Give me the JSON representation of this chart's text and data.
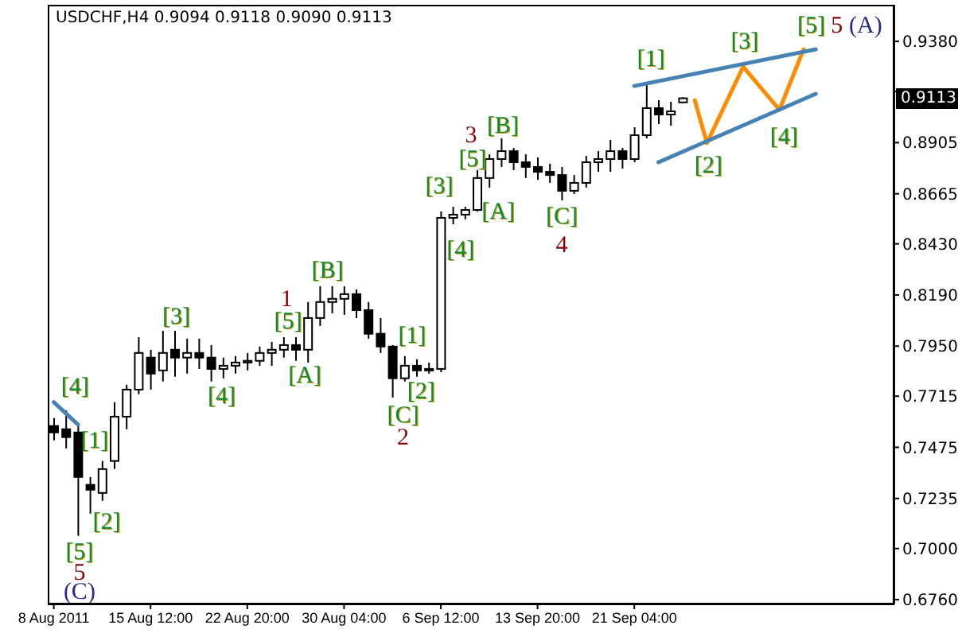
{
  "chart_data": {
    "type": "candlestick",
    "title": "USDCHF,H4  0.9094 0.9118 0.9090 0.9113",
    "color": "#000000",
    "categories": [
      "8 Aug 2011",
      null,
      null,
      null,
      null,
      null,
      null,
      null,
      "15 Aug 12:00",
      null,
      null,
      null,
      null,
      null,
      null,
      null,
      "22 Aug 20:00",
      null,
      null,
      null,
      null,
      null,
      null,
      null,
      "30 Aug 04:00",
      null,
      null,
      null,
      null,
      null,
      null,
      null,
      "6 Sep 12:00",
      null,
      null,
      null,
      null,
      null,
      null,
      null,
      "13 Sep 20:00",
      null,
      null,
      null,
      null,
      null,
      null,
      null,
      "21 Sep 04:00",
      null,
      null,
      null,
      null,
      null,
      null,
      null,
      null,
      null,
      null,
      null,
      null,
      null,
      null,
      null,
      null,
      null,
      null,
      null,
      null,
      null
    ],
    "ohlc": [
      [
        0.7575,
        0.7612,
        0.7508,
        0.7545
      ],
      [
        0.756,
        0.7649,
        0.747,
        0.7523
      ],
      [
        0.7545,
        0.7575,
        0.706,
        0.7336
      ],
      [
        0.7299,
        0.7336,
        0.7164,
        0.7276
      ],
      [
        0.7261,
        0.7411,
        0.7224,
        0.7373
      ],
      [
        0.7411,
        0.7687,
        0.7373,
        0.7619
      ],
      [
        0.7619,
        0.7769,
        0.756,
        0.7746
      ],
      [
        0.7746,
        0.7992,
        0.7724,
        0.7918
      ],
      [
        0.7896,
        0.7933,
        0.7746,
        0.7821
      ],
      [
        0.7836,
        0.8022,
        0.7784,
        0.7918
      ],
      [
        0.7933,
        0.8022,
        0.7806,
        0.7896
      ],
      [
        0.7896,
        0.7985,
        0.7821,
        0.7918
      ],
      [
        0.7918,
        0.7985,
        0.7843,
        0.7896
      ],
      [
        0.7896,
        0.7955,
        0.7784,
        0.7843
      ],
      [
        0.7843,
        0.7896,
        0.7799,
        0.7858
      ],
      [
        0.7858,
        0.7903,
        0.7821,
        0.7873
      ],
      [
        0.7873,
        0.7918,
        0.7836,
        0.7881
      ],
      [
        0.7881,
        0.7948,
        0.7858,
        0.7918
      ],
      [
        0.7918,
        0.797,
        0.7858,
        0.7933
      ],
      [
        0.7933,
        0.7992,
        0.7896,
        0.7955
      ],
      [
        0.7955,
        0.7992,
        0.7881,
        0.7933
      ],
      [
        0.7933,
        0.8157,
        0.7873,
        0.8082
      ],
      [
        0.8082,
        0.8231,
        0.8045,
        0.8157
      ],
      [
        0.8157,
        0.8231,
        0.8104,
        0.8172
      ],
      [
        0.8172,
        0.8231,
        0.8097,
        0.8194
      ],
      [
        0.8194,
        0.8216,
        0.8082,
        0.8119
      ],
      [
        0.8119,
        0.8157,
        0.7985,
        0.8008
      ],
      [
        0.8008,
        0.8082,
        0.7918,
        0.7948
      ],
      [
        0.7948,
        0.7955,
        0.7709,
        0.7799
      ],
      [
        0.7799,
        0.7903,
        0.7784,
        0.7858
      ],
      [
        0.7858,
        0.7888,
        0.7806,
        0.7836
      ],
      [
        0.7836,
        0.7873,
        0.7821,
        0.7843
      ],
      [
        0.7843,
        0.8582,
        0.7828,
        0.8552
      ],
      [
        0.8552,
        0.8604,
        0.8522,
        0.8567
      ],
      [
        0.8567,
        0.8604,
        0.8545,
        0.8589
      ],
      [
        0.8589,
        0.8776,
        0.8582,
        0.8739
      ],
      [
        0.8739,
        0.885,
        0.8694,
        0.8828
      ],
      [
        0.8828,
        0.8925,
        0.8791,
        0.8865
      ],
      [
        0.8865,
        0.888,
        0.8776,
        0.8813
      ],
      [
        0.8813,
        0.885,
        0.8739,
        0.8791
      ],
      [
        0.8791,
        0.8835,
        0.8731,
        0.8768
      ],
      [
        0.8768,
        0.8806,
        0.8716,
        0.8753
      ],
      [
        0.8753,
        0.8791,
        0.8634,
        0.8679
      ],
      [
        0.8679,
        0.8753,
        0.8664,
        0.8716
      ],
      [
        0.8716,
        0.8843,
        0.8694,
        0.8813
      ],
      [
        0.8813,
        0.8865,
        0.8768,
        0.8828
      ],
      [
        0.8828,
        0.8918,
        0.8768,
        0.8865
      ],
      [
        0.8865,
        0.888,
        0.8783,
        0.8828
      ],
      [
        0.8828,
        0.8977,
        0.8813,
        0.894
      ],
      [
        0.894,
        0.9179,
        0.8925,
        0.9067
      ],
      [
        0.9067,
        0.9104,
        0.8992,
        0.9037
      ],
      [
        0.9037,
        0.9097,
        0.8985,
        0.9052
      ],
      [
        0.9094,
        0.9118,
        0.909,
        0.9113
      ],
      null,
      null,
      null,
      null,
      null,
      null,
      null,
      null,
      null,
      null,
      null,
      null,
      null,
      null,
      null,
      null,
      null
    ],
    "series": [
      {
        "type": "line",
        "color": "#ff8c00",
        "values": [
          null,
          null,
          null,
          null,
          null,
          null,
          null,
          null,
          null,
          null,
          null,
          null,
          null,
          null,
          null,
          null,
          null,
          null,
          null,
          null,
          null,
          null,
          null,
          null,
          null,
          null,
          null,
          null,
          null,
          null,
          null,
          null,
          null,
          null,
          null,
          null,
          null,
          null,
          null,
          null,
          null,
          null,
          null,
          null,
          null,
          null,
          null,
          null,
          null,
          null,
          null,
          null,
          null,
          0.9104,
          0.8903,
          null,
          null,
          0.9261,
          null,
          null,
          0.9059,
          null,
          0.9343,
          null,
          null,
          null,
          null,
          null,
          null,
          null
        ]
      },
      {
        "type": "line",
        "color": "#4682b4",
        "values": [
          null,
          null,
          null,
          null,
          null,
          null,
          null,
          null,
          null,
          null,
          null,
          null,
          null,
          null,
          null,
          null,
          null,
          null,
          null,
          null,
          null,
          null,
          null,
          null,
          null,
          null,
          null,
          null,
          null,
          null,
          null,
          null,
          null,
          null,
          null,
          null,
          null,
          null,
          null,
          null,
          null,
          null,
          null,
          null,
          null,
          null,
          null,
          null,
          0.9171,
          null,
          null,
          null,
          null,
          null,
          null,
          null,
          null,
          null,
          null,
          null,
          null,
          null,
          null,
          0.9343,
          null,
          null,
          null,
          null,
          null,
          null
        ]
      },
      {
        "type": "line",
        "color": "#4682b4",
        "values": [
          null,
          null,
          null,
          null,
          null,
          null,
          null,
          null,
          null,
          null,
          null,
          null,
          null,
          null,
          null,
          null,
          null,
          null,
          null,
          null,
          null,
          null,
          null,
          null,
          null,
          null,
          null,
          null,
          null,
          null,
          null,
          null,
          null,
          null,
          null,
          null,
          null,
          null,
          null,
          null,
          null,
          null,
          null,
          null,
          null,
          null,
          null,
          null,
          null,
          null,
          0.8813,
          null,
          null,
          null,
          null,
          null,
          null,
          null,
          null,
          null,
          null,
          null,
          null,
          0.9134,
          null,
          null,
          null,
          null,
          null,
          null
        ]
      },
      {
        "type": "line",
        "color": "#4682b4",
        "values": [
          0.7687,
          null,
          0.7582,
          null,
          null,
          null,
          null,
          null,
          null,
          null,
          null,
          null,
          null,
          null,
          null,
          null,
          null,
          null,
          null,
          null,
          null,
          null,
          null,
          null,
          null,
          null,
          null,
          null,
          null,
          null,
          null,
          null,
          null,
          null,
          null,
          null,
          null,
          null,
          null,
          null,
          null,
          null,
          null,
          null,
          null,
          null,
          null,
          null,
          null,
          null,
          null,
          null,
          null,
          null,
          null,
          null,
          null,
          null,
          null,
          null,
          null,
          null,
          null,
          null,
          null,
          null,
          null,
          null,
          null,
          null
        ]
      }
    ],
    "ylim": [
      0.6738,
      0.9552
    ],
    "yticks": [
      {
        "value": 0.938,
        "label": "0.9380"
      },
      {
        "value": 0.9145,
        "label": null
      },
      0.8905,
      0.8665,
      {
        "value": 0.843,
        "label": "0.8430"
      },
      {
        "value": 0.819,
        "label": "0.8190"
      },
      {
        "value": 0.795,
        "label": "0.7950"
      },
      0.7715,
      0.7475,
      0.7235,
      {
        "value": 0.7,
        "label": "0.7000"
      },
      {
        "value": 0.676,
        "label": "0.6760"
      }
    ],
    "annotations": [
      "[4]",
      "[1]",
      "[2]",
      "[5]",
      "5",
      "(C)",
      "[3]",
      "[4]",
      "1",
      "[5]",
      "[A]",
      "[B]",
      "[1]",
      "[2]",
      "[C]",
      "2",
      "[3]",
      "[4]",
      "[5]",
      "3",
      "[A]",
      "[B]",
      "[C]",
      "4",
      "[1]",
      "[3]",
      "[5]",
      "5",
      "(A)",
      "[2]",
      "[4]",
      {
        "text": "0.9113",
        "y": 0.9113
      }
    ],
    "tick_labels": "xy"
  }
}
